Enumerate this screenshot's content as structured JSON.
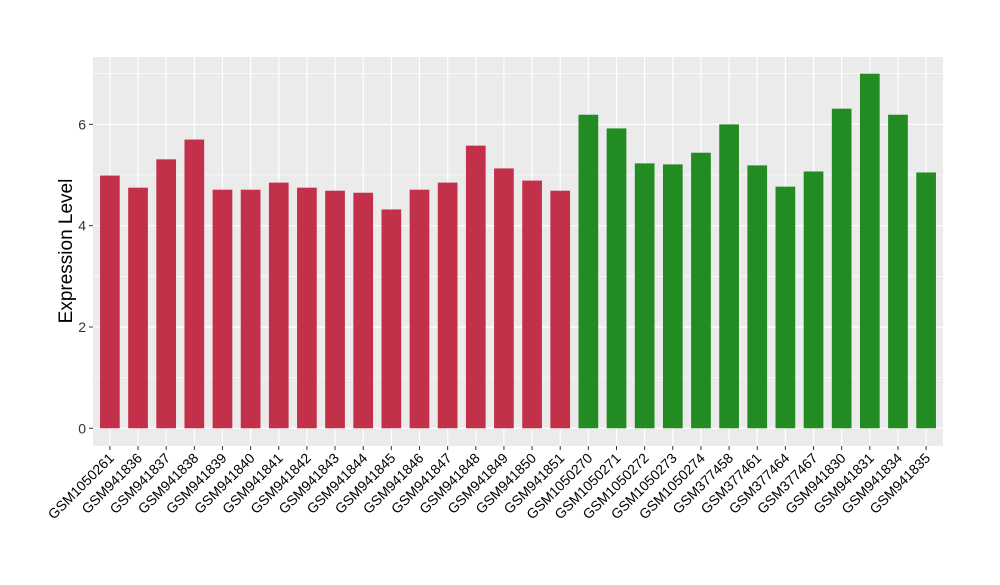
{
  "chart_data": {
    "type": "bar",
    "title": "",
    "xlabel": "",
    "ylabel": "Expression Level",
    "ylim": [
      -0.35,
      7.33
    ],
    "yticks": [
      0,
      2,
      4,
      6
    ],
    "grid": true,
    "legend": "none",
    "colors": {
      "group1": "#C3304A",
      "group2": "#228B22",
      "panel": "#EBEBEB",
      "grid": "#FFFFFF"
    },
    "categories": [
      "GSM1050261",
      "GSM941836",
      "GSM941837",
      "GSM941838",
      "GSM941839",
      "GSM941840",
      "GSM941841",
      "GSM941842",
      "GSM941843",
      "GSM941844",
      "GSM941845",
      "GSM941846",
      "GSM941847",
      "GSM941848",
      "GSM941849",
      "GSM941850",
      "GSM941851",
      "GSM1050270",
      "GSM1050271",
      "GSM1050272",
      "GSM1050273",
      "GSM1050274",
      "GSM377458",
      "GSM377461",
      "GSM377464",
      "GSM377467",
      "GSM941830",
      "GSM941831",
      "GSM941834",
      "GSM941835"
    ],
    "values": [
      4.99,
      4.75,
      5.31,
      5.7,
      4.71,
      4.71,
      4.85,
      4.75,
      4.69,
      4.65,
      4.32,
      4.71,
      4.85,
      5.58,
      5.13,
      4.89,
      4.69,
      6.19,
      5.92,
      5.23,
      5.21,
      5.44,
      6.0,
      5.19,
      4.77,
      5.07,
      6.31,
      7.0,
      6.19,
      5.05
    ],
    "groups": [
      1,
      1,
      1,
      1,
      1,
      1,
      1,
      1,
      1,
      1,
      1,
      1,
      1,
      1,
      1,
      1,
      1,
      2,
      2,
      2,
      2,
      2,
      2,
      2,
      2,
      2,
      2,
      2,
      2,
      2
    ]
  }
}
